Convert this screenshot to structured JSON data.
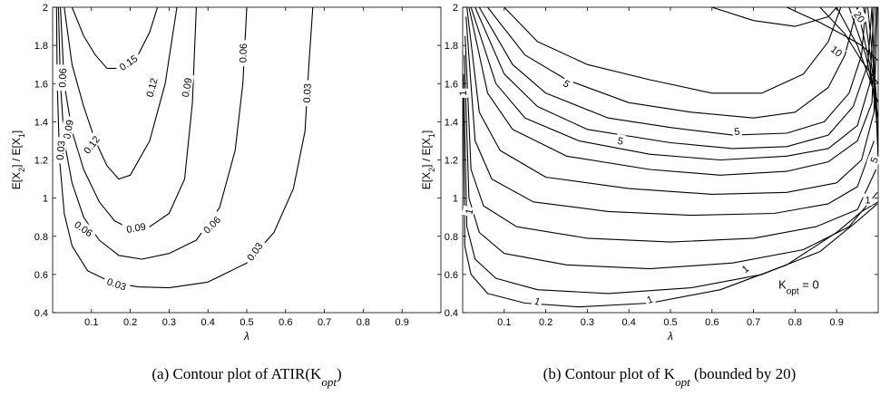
{
  "chart_data": [
    {
      "type": "contour",
      "xlabel": "λ",
      "ylabel": "E[X2] / E[X1]",
      "xlim": [
        0,
        1
      ],
      "ylim": [
        0.4,
        2
      ],
      "xticks": [
        "0.1",
        "0.2",
        "0.3",
        "0.4",
        "0.5",
        "0.6",
        "0.7",
        "0.8",
        "0.9"
      ],
      "yticks": [
        "0.4",
        "0.6",
        "0.8",
        "1",
        "1.2",
        "1.4",
        "1.6",
        "1.8",
        "2"
      ],
      "caption": "(a) Contour plot of ATIR(K",
      "caption_sub": "opt",
      "caption_end": ")",
      "levels": [
        {
          "level": "0.15",
          "points": [
            [
              0.05,
              2.0
            ],
            [
              0.08,
              1.85
            ],
            [
              0.11,
              1.75
            ],
            [
              0.14,
              1.68
            ],
            [
              0.18,
              1.68
            ],
            [
              0.22,
              1.75
            ],
            [
              0.25,
              1.87
            ],
            [
              0.27,
              2.0
            ]
          ]
        },
        {
          "level": "0.12",
          "points": [
            [
              0.03,
              2.0
            ],
            [
              0.05,
              1.7
            ],
            [
              0.08,
              1.48
            ],
            [
              0.11,
              1.3
            ],
            [
              0.14,
              1.17
            ],
            [
              0.17,
              1.1
            ],
            [
              0.2,
              1.12
            ],
            [
              0.25,
              1.3
            ],
            [
              0.29,
              1.6
            ],
            [
              0.32,
              2.0
            ]
          ]
        },
        {
          "level": "0.09",
          "points": [
            [
              0.02,
              2.0
            ],
            [
              0.03,
              1.6
            ],
            [
              0.05,
              1.35
            ],
            [
              0.08,
              1.15
            ],
            [
              0.12,
              0.98
            ],
            [
              0.16,
              0.88
            ],
            [
              0.2,
              0.84
            ],
            [
              0.25,
              0.85
            ],
            [
              0.3,
              0.92
            ],
            [
              0.34,
              1.1
            ],
            [
              0.36,
              1.5
            ],
            [
              0.37,
              2.0
            ]
          ]
        },
        {
          "level": "0.06",
          "points": [
            [
              0.015,
              2.0
            ],
            [
              0.02,
              1.6
            ],
            [
              0.03,
              1.3
            ],
            [
              0.05,
              1.08
            ],
            [
              0.08,
              0.9
            ],
            [
              0.12,
              0.78
            ],
            [
              0.17,
              0.7
            ],
            [
              0.23,
              0.68
            ],
            [
              0.3,
              0.71
            ],
            [
              0.37,
              0.78
            ],
            [
              0.43,
              0.95
            ],
            [
              0.47,
              1.25
            ],
            [
              0.49,
              1.6
            ],
            [
              0.5,
              2.0
            ]
          ]
        },
        {
          "level": "0.03",
          "points": [
            [
              0.01,
              2.0
            ],
            [
              0.012,
              1.6
            ],
            [
              0.018,
              1.2
            ],
            [
              0.03,
              0.92
            ],
            [
              0.05,
              0.75
            ],
            [
              0.09,
              0.62
            ],
            [
              0.15,
              0.56
            ],
            [
              0.22,
              0.535
            ],
            [
              0.3,
              0.53
            ],
            [
              0.4,
              0.56
            ],
            [
              0.5,
              0.66
            ],
            [
              0.57,
              0.82
            ],
            [
              0.62,
              1.05
            ],
            [
              0.65,
              1.35
            ],
            [
              0.66,
              1.7
            ],
            [
              0.67,
              2.0
            ]
          ]
        }
      ],
      "contour_labels": [
        {
          "text": "0.15",
          "x": 0.195,
          "y": 1.71,
          "angle": -35
        },
        {
          "text": "0.12",
          "x": 0.255,
          "y": 1.58,
          "angle": -75
        },
        {
          "text": "0.09",
          "x": 0.345,
          "y": 1.58,
          "angle": -80
        },
        {
          "text": "0.06",
          "x": 0.49,
          "y": 1.76,
          "angle": -88
        },
        {
          "text": "0.03",
          "x": 0.655,
          "y": 1.55,
          "angle": -88
        },
        {
          "text": "0.06",
          "x": 0.025,
          "y": 1.63,
          "angle": -88
        },
        {
          "text": "0.09",
          "x": 0.04,
          "y": 1.36,
          "angle": -80
        },
        {
          "text": "0.03",
          "x": 0.02,
          "y": 1.25,
          "angle": -85
        },
        {
          "text": "0.12",
          "x": 0.1,
          "y": 1.28,
          "angle": -52
        },
        {
          "text": "0.09",
          "x": 0.215,
          "y": 0.845,
          "angle": -10
        },
        {
          "text": "0.06",
          "x": 0.41,
          "y": 0.86,
          "angle": -45
        },
        {
          "text": "0.03",
          "x": 0.52,
          "y": 0.72,
          "angle": -55
        },
        {
          "text": "0.06",
          "x": 0.08,
          "y": 0.84,
          "angle": 35
        },
        {
          "text": "0.03",
          "x": 0.165,
          "y": 0.55,
          "angle": 18
        }
      ]
    },
    {
      "type": "contour",
      "xlabel": "λ",
      "ylabel": "E[X2] / E[X1]",
      "xlim": [
        0,
        1
      ],
      "ylim": [
        0.4,
        2
      ],
      "xticks": [
        "0.1",
        "0.2",
        "0.3",
        "0.4",
        "0.5",
        "0.6",
        "0.7",
        "0.8",
        "0.9"
      ],
      "yticks": [
        "0.4",
        "0.6",
        "0.8",
        "1",
        "1.2",
        "1.4",
        "1.6",
        "1.8",
        "2"
      ],
      "caption": "(b) Contour plot of K",
      "caption_sub": "opt",
      "caption_end": " (bounded by 20)",
      "annotation": "K",
      "annotation_sub": "opt",
      "annotation_end": " = 0",
      "lines": [
        [
          [
            0.1,
            2.0
          ],
          [
            0.18,
            1.82
          ],
          [
            0.3,
            1.7
          ],
          [
            0.45,
            1.62
          ],
          [
            0.6,
            1.55
          ],
          [
            0.72,
            1.55
          ],
          [
            0.82,
            1.65
          ],
          [
            0.88,
            1.82
          ],
          [
            0.91,
            2.0
          ]
        ],
        [
          [
            0.06,
            2.0
          ],
          [
            0.15,
            1.75
          ],
          [
            0.25,
            1.62
          ],
          [
            0.4,
            1.5
          ],
          [
            0.55,
            1.45
          ],
          [
            0.7,
            1.42
          ],
          [
            0.8,
            1.45
          ],
          [
            0.88,
            1.58
          ],
          [
            0.92,
            1.75
          ],
          [
            0.95,
            2.0
          ]
        ],
        [
          [
            0.04,
            2.0
          ],
          [
            0.12,
            1.7
          ],
          [
            0.2,
            1.55
          ],
          [
            0.35,
            1.42
          ],
          [
            0.5,
            1.37
          ],
          [
            0.65,
            1.33
          ],
          [
            0.78,
            1.34
          ],
          [
            0.87,
            1.4
          ],
          [
            0.93,
            1.55
          ],
          [
            0.96,
            1.75
          ],
          [
            0.97,
            2.0
          ]
        ],
        [
          [
            0.03,
            2.0
          ],
          [
            0.1,
            1.65
          ],
          [
            0.18,
            1.48
          ],
          [
            0.3,
            1.36
          ],
          [
            0.5,
            1.29
          ],
          [
            0.65,
            1.26
          ],
          [
            0.78,
            1.27
          ],
          [
            0.88,
            1.33
          ],
          [
            0.94,
            1.48
          ],
          [
            0.975,
            1.7
          ],
          [
            0.985,
            2.0
          ]
        ],
        [
          [
            0.02,
            2.0
          ],
          [
            0.08,
            1.6
          ],
          [
            0.15,
            1.42
          ],
          [
            0.28,
            1.3
          ],
          [
            0.45,
            1.23
          ],
          [
            0.62,
            1.2
          ],
          [
            0.78,
            1.22
          ],
          [
            0.88,
            1.26
          ],
          [
            0.95,
            1.38
          ],
          [
            0.98,
            1.6
          ],
          [
            0.99,
            2.0
          ]
        ],
        [
          [
            0.015,
            2.0
          ],
          [
            0.06,
            1.55
          ],
          [
            0.12,
            1.36
          ],
          [
            0.25,
            1.22
          ],
          [
            0.45,
            1.15
          ],
          [
            0.62,
            1.12
          ],
          [
            0.78,
            1.14
          ],
          [
            0.88,
            1.19
          ],
          [
            0.95,
            1.3
          ],
          [
            0.985,
            1.5
          ],
          [
            0.995,
            2.0
          ]
        ],
        [
          [
            0.01,
            2.0
          ],
          [
            0.04,
            1.45
          ],
          [
            0.09,
            1.25
          ],
          [
            0.2,
            1.11
          ],
          [
            0.4,
            1.05
          ],
          [
            0.6,
            1.02
          ],
          [
            0.78,
            1.03
          ],
          [
            0.9,
            1.08
          ],
          [
            0.96,
            1.2
          ],
          [
            0.99,
            1.45
          ],
          [
            0.998,
            2.0
          ]
        ],
        [
          [
            0.008,
            1.95
          ],
          [
            0.03,
            1.3
          ],
          [
            0.07,
            1.1
          ],
          [
            0.17,
            0.98
          ],
          [
            0.35,
            0.93
          ],
          [
            0.55,
            0.91
          ],
          [
            0.75,
            0.92
          ],
          [
            0.88,
            0.97
          ],
          [
            0.95,
            1.06
          ],
          [
            0.99,
            1.3
          ]
        ],
        [
          [
            0.006,
            1.85
          ],
          [
            0.02,
            1.15
          ],
          [
            0.05,
            0.96
          ],
          [
            0.13,
            0.85
          ],
          [
            0.3,
            0.79
          ],
          [
            0.5,
            0.77
          ],
          [
            0.7,
            0.79
          ],
          [
            0.85,
            0.85
          ],
          [
            0.95,
            0.94
          ],
          [
            0.995,
            1.15
          ]
        ],
        [
          [
            0.004,
            1.75
          ],
          [
            0.015,
            1.0
          ],
          [
            0.04,
            0.82
          ],
          [
            0.1,
            0.71
          ],
          [
            0.25,
            0.65
          ],
          [
            0.45,
            0.63
          ],
          [
            0.65,
            0.66
          ],
          [
            0.82,
            0.73
          ],
          [
            0.93,
            0.85
          ],
          [
            0.998,
            1.03
          ]
        ],
        [
          [
            0.002,
            1.65
          ],
          [
            0.01,
            0.85
          ],
          [
            0.03,
            0.68
          ],
          [
            0.08,
            0.58
          ],
          [
            0.18,
            0.52
          ],
          [
            0.35,
            0.5
          ],
          [
            0.55,
            0.53
          ],
          [
            0.72,
            0.6
          ],
          [
            0.86,
            0.72
          ],
          [
            0.95,
            0.88
          ],
          [
            0.998,
            0.97
          ]
        ],
        [
          [
            0.001,
            1.55
          ],
          [
            0.005,
            0.75
          ],
          [
            0.02,
            0.6
          ],
          [
            0.06,
            0.5
          ],
          [
            0.15,
            0.45
          ],
          [
            0.28,
            0.43
          ],
          [
            0.45,
            0.45
          ],
          [
            0.62,
            0.52
          ],
          [
            0.78,
            0.65
          ],
          [
            0.9,
            0.82
          ],
          [
            0.96,
            0.93
          ],
          [
            1.0,
            0.98
          ]
        ],
        [
          [
            0.6,
            2.0
          ],
          [
            0.7,
            1.93
          ],
          [
            0.8,
            1.9
          ],
          [
            0.88,
            1.95
          ],
          [
            0.9,
            2.0
          ]
        ],
        [
          [
            0.78,
            2.0
          ],
          [
            0.86,
            1.92
          ],
          [
            0.92,
            1.85
          ],
          [
            0.96,
            1.8
          ],
          [
            1.0,
            1.72
          ]
        ],
        [
          [
            0.86,
            2.0
          ],
          [
            0.92,
            1.86
          ],
          [
            0.96,
            1.72
          ],
          [
            1.0,
            1.6
          ]
        ],
        [
          [
            0.9,
            2.0
          ],
          [
            0.95,
            1.8
          ],
          [
            0.98,
            1.62
          ],
          [
            1.0,
            1.5
          ]
        ],
        [
          [
            0.93,
            2.0
          ],
          [
            0.97,
            1.75
          ],
          [
            0.99,
            1.55
          ],
          [
            1.0,
            1.42
          ]
        ],
        [
          [
            0.95,
            2.0
          ],
          [
            0.98,
            1.7
          ],
          [
            1.0,
            1.35
          ]
        ],
        [
          [
            0.965,
            2.0
          ],
          [
            0.99,
            1.6
          ],
          [
            1.0,
            1.3
          ]
        ],
        [
          [
            0.975,
            2.0
          ],
          [
            0.995,
            1.55
          ],
          [
            1.0,
            1.25
          ]
        ],
        [
          [
            0.985,
            2.0
          ],
          [
            1.0,
            1.2
          ]
        ]
      ],
      "contour_labels": [
        {
          "text": "5",
          "x": 0.25,
          "y": 1.6,
          "angle": 35
        },
        {
          "text": "5",
          "x": 0.38,
          "y": 1.3,
          "angle": 12
        },
        {
          "text": "5",
          "x": 0.66,
          "y": 1.35,
          "angle": -8
        },
        {
          "text": "5",
          "x": 0.99,
          "y": 1.2,
          "angle": -70
        },
        {
          "text": "10",
          "x": 0.9,
          "y": 1.77,
          "angle": 38
        },
        {
          "text": "20",
          "x": 0.955,
          "y": 1.95,
          "angle": 55
        },
        {
          "text": "1",
          "x": 0.015,
          "y": 0.93,
          "angle": -75
        },
        {
          "text": "1",
          "x": 0.0,
          "y": 1.55,
          "angle": -90
        },
        {
          "text": "1",
          "x": 0.18,
          "y": 0.46,
          "angle": 20
        },
        {
          "text": "1",
          "x": 0.45,
          "y": 0.47,
          "angle": -20
        },
        {
          "text": "1",
          "x": 0.68,
          "y": 0.63,
          "angle": -38
        },
        {
          "text": "1",
          "x": 0.975,
          "y": 0.99,
          "angle": 0
        }
      ]
    }
  ]
}
